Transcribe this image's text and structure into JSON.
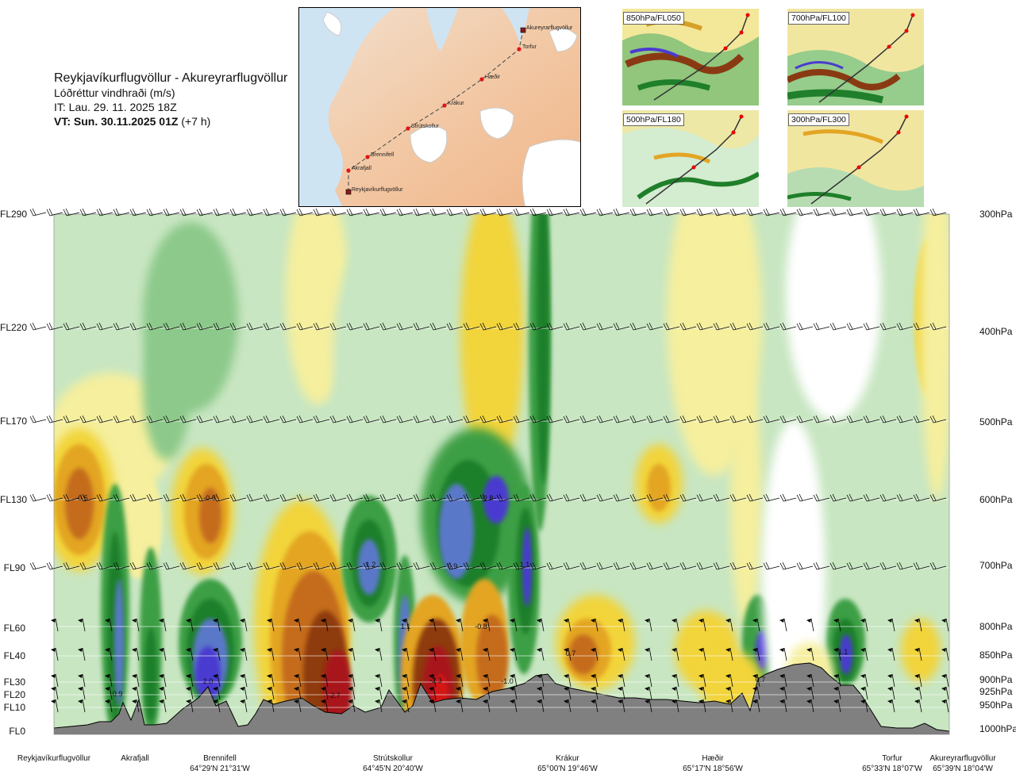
{
  "header": {
    "route": "Reykjavíkurflugvöllur - Akureyrarflugvöllur",
    "variable": "Lóðréttur vindhraði (m/s)",
    "init_time": "IT: Lau. 29. 11. 2025 18Z",
    "valid_prefix": "VT: Sun. 30.11.2025 01Z",
    "valid_suffix": "(+7 h)"
  },
  "overview_map": {
    "waypoints": [
      {
        "name": "Akureyrarflugvöllur"
      },
      {
        "name": "Torfur"
      },
      {
        "name": "Hæðir"
      },
      {
        "name": "Krákur"
      },
      {
        "name": "Strútskollur"
      },
      {
        "name": "Brennifell"
      },
      {
        "name": "Akrafjall"
      },
      {
        "name": "Reykjavíkurflugvöllur"
      }
    ]
  },
  "mini_maps": [
    {
      "label": "850hPa/FL050"
    },
    {
      "label": "700hPa/FL100"
    },
    {
      "label": "500hPa/FL180"
    },
    {
      "label": "300hPa/FL300"
    }
  ],
  "chart_data": {
    "type": "heatmap",
    "title": "Lóðréttur vindhraði (m/s)",
    "flight_levels": [
      "FL290",
      "FL220",
      "FL170",
      "FL130",
      "FL90",
      "FL60",
      "FL40",
      "FL30",
      "FL20",
      "FL10",
      "FL0"
    ],
    "pressure_levels": [
      "300hPa",
      "400hPa",
      "500hPa",
      "600hPa",
      "700hPa",
      "800hPa",
      "850hPa",
      "900hPa",
      "925hPa",
      "950hPa",
      "1000hPa"
    ],
    "locations": [
      {
        "name": "Reykjavíkurflugvöllur",
        "coord": ""
      },
      {
        "name": "Akrafjall",
        "coord": ""
      },
      {
        "name": "Brennifell",
        "coord": "64°29'N 21°31'W"
      },
      {
        "name": "Strútskollur",
        "coord": "64°45'N 20°40'W"
      },
      {
        "name": "Krákur",
        "coord": "65°00'N 19°46'W"
      },
      {
        "name": "Hæðir",
        "coord": "65°17'N 18°56'W"
      },
      {
        "name": "Torfur",
        "coord": "65°33'N 18°07'W"
      },
      {
        "name": "Akureyrarflugvöllur",
        "coord": "65°39'N 18°04'W"
      }
    ],
    "value_labels": [
      "-0.5",
      "-0.6",
      "0.8",
      "1.2",
      "0.9",
      "1.1",
      "1.1",
      "-0.8",
      "0.7",
      "1.1",
      "0.9",
      "2.0",
      "-2.7",
      "-2.3",
      "-1.0",
      "0.7"
    ],
    "colorscale": [
      "#4a3bd0",
      "#5a78c8",
      "#1f7f2a",
      "#3e9f45",
      "#8cc98a",
      "#c8e6c2",
      "#ffffff",
      "#f5ef9e",
      "#f2d43a",
      "#e3a524",
      "#c46c1c",
      "#8e3a10",
      "#a8141a",
      "#d41515"
    ],
    "terrain_color": "#808080"
  }
}
